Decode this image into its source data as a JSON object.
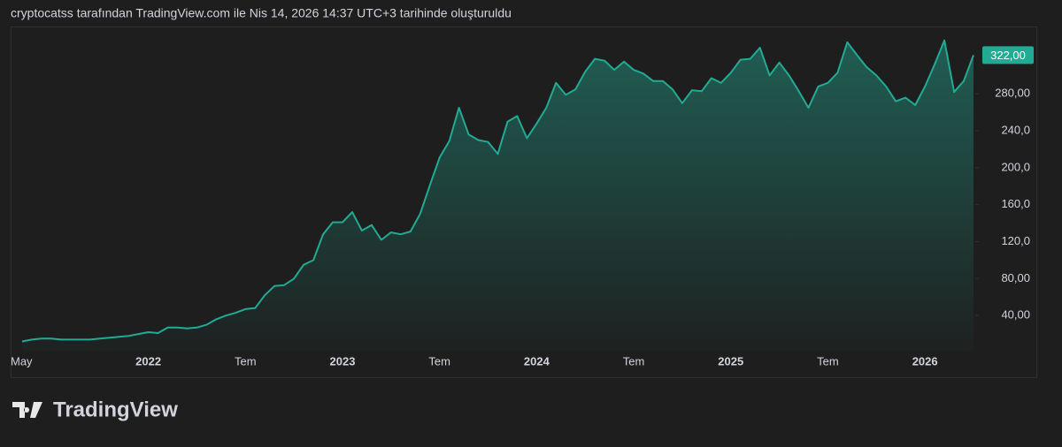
{
  "caption": "cryptocatss tarafından TradingView.com ile Nis 14, 2026 14:37 UTC+3 tarihinde oluşturuldu",
  "brand": "TradingView",
  "chart_data": {
    "type": "area",
    "categories": [
      "May",
      null,
      null,
      null,
      null,
      null,
      null,
      null,
      null,
      null,
      null,
      null,
      null,
      "2022",
      null,
      null,
      null,
      null,
      null,
      null,
      null,
      null,
      null,
      "Tem",
      null,
      null,
      null,
      null,
      null,
      null,
      null,
      null,
      null,
      "2023",
      null,
      null,
      null,
      null,
      null,
      null,
      null,
      null,
      null,
      "Tem",
      null,
      null,
      null,
      null,
      null,
      null,
      null,
      null,
      null,
      "2024",
      null,
      null,
      null,
      null,
      null,
      null,
      null,
      null,
      null,
      "Tem",
      null,
      null,
      null,
      null,
      null,
      null,
      null,
      null,
      null,
      "2025",
      null,
      null,
      null,
      null,
      null,
      null,
      null,
      null,
      null,
      "Tem",
      null,
      null,
      null,
      null,
      null,
      null,
      null,
      null,
      null,
      "2026",
      null,
      null,
      null,
      null,
      null
    ],
    "series": [
      {
        "color": "#22ab94",
        "values": [
          12,
          14,
          15,
          15,
          14,
          14,
          14,
          14,
          15,
          16,
          17,
          18,
          20,
          22,
          21,
          27,
          27,
          26,
          27,
          30,
          36,
          40,
          43,
          47,
          48,
          62,
          72,
          73,
          80,
          95,
          100,
          128,
          141,
          141,
          152,
          132,
          138,
          122,
          130,
          128,
          131,
          150,
          181,
          211,
          229,
          265,
          236,
          230,
          228,
          215,
          250,
          256,
          232,
          248,
          265,
          292,
          279,
          285,
          304,
          318,
          316,
          306,
          315,
          306,
          302,
          294,
          294,
          285,
          270,
          284,
          283,
          297,
          292,
          303,
          317,
          318,
          330,
          300,
          314,
          300,
          283,
          265,
          288,
          292,
          303,
          336,
          322,
          309,
          300,
          288,
          272,
          276,
          268,
          288,
          312,
          338,
          282,
          294,
          322
        ]
      }
    ],
    "last_price": {
      "value": 322,
      "label": "322,00"
    },
    "ylim": [
      0,
      353
    ],
    "yticks": [
      {
        "value": 40,
        "label": "40,00"
      },
      {
        "value": 80,
        "label": "80,00"
      },
      {
        "value": 120,
        "label": "120,0"
      },
      {
        "value": 160,
        "label": "160,0"
      },
      {
        "value": 200,
        "label": "200,0"
      },
      {
        "value": 240,
        "label": "240,0"
      },
      {
        "value": 280,
        "label": "280,00"
      }
    ]
  }
}
